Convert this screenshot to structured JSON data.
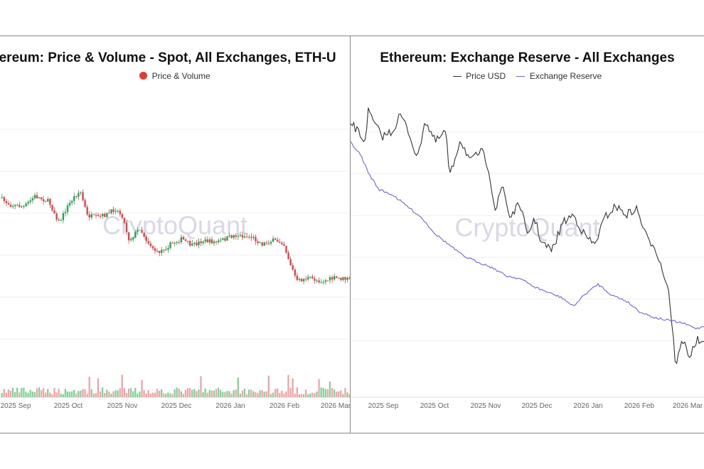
{
  "chart_data": [
    {
      "type": "candlestick",
      "title": "Ethereum: Price & Volume - Spot, All Exchanges, ETH-U",
      "legend": [
        {
          "name": "Price & Volume",
          "color": "#e53935"
        }
      ],
      "legend_position": "top-center",
      "watermark": "CryptoQuant",
      "grid": true,
      "x_ticks": [
        "2025 Sep",
        "2025 Oct",
        "2025 Nov",
        "2025 Dec",
        "2026 Jan",
        "2026 Feb",
        "2026 Mar"
      ],
      "price_path": [
        [
          0,
          0.31
        ],
        [
          0.03,
          0.35
        ],
        [
          0.07,
          0.36
        ],
        [
          0.1,
          0.3
        ],
        [
          0.14,
          0.33
        ],
        [
          0.17,
          0.45
        ],
        [
          0.19,
          0.37
        ],
        [
          0.21,
          0.31
        ],
        [
          0.23,
          0.27
        ],
        [
          0.25,
          0.41
        ],
        [
          0.28,
          0.42
        ],
        [
          0.31,
          0.4
        ],
        [
          0.33,
          0.37
        ],
        [
          0.35,
          0.41
        ],
        [
          0.37,
          0.55
        ],
        [
          0.4,
          0.48
        ],
        [
          0.42,
          0.55
        ],
        [
          0.45,
          0.62
        ],
        [
          0.49,
          0.57
        ],
        [
          0.52,
          0.54
        ],
        [
          0.55,
          0.58
        ],
        [
          0.58,
          0.55
        ],
        [
          0.62,
          0.56
        ],
        [
          0.67,
          0.52
        ],
        [
          0.72,
          0.53
        ],
        [
          0.75,
          0.57
        ],
        [
          0.78,
          0.55
        ],
        [
          0.81,
          0.56
        ],
        [
          0.83,
          0.68
        ],
        [
          0.85,
          0.78
        ],
        [
          0.88,
          0.76
        ],
        [
          0.92,
          0.78
        ],
        [
          0.96,
          0.76
        ],
        [
          1.0,
          0.77
        ]
      ],
      "candle_colors": {
        "up": "#2e9e4f",
        "down": "#e0434a"
      }
    },
    {
      "type": "line",
      "title": "Ethereum: Exchange Reserve - All Exchanges",
      "series": [
        {
          "name": "Price USD",
          "color": "#333333",
          "points": [
            [
              0,
              0.06
            ],
            [
              0.02,
              0.09
            ],
            [
              0.04,
              0.13
            ],
            [
              0.05,
              0.02
            ],
            [
              0.07,
              0.07
            ],
            [
              0.09,
              0.11
            ],
            [
              0.12,
              0.09
            ],
            [
              0.14,
              0.03
            ],
            [
              0.16,
              0.08
            ],
            [
              0.19,
              0.19
            ],
            [
              0.21,
              0.05
            ],
            [
              0.24,
              0.13
            ],
            [
              0.27,
              0.09
            ],
            [
              0.28,
              0.26
            ],
            [
              0.31,
              0.12
            ],
            [
              0.34,
              0.2
            ],
            [
              0.37,
              0.16
            ],
            [
              0.39,
              0.22
            ],
            [
              0.41,
              0.38
            ],
            [
              0.43,
              0.28
            ],
            [
              0.45,
              0.4
            ],
            [
              0.48,
              0.35
            ],
            [
              0.5,
              0.47
            ],
            [
              0.52,
              0.4
            ],
            [
              0.54,
              0.49
            ],
            [
              0.57,
              0.52
            ],
            [
              0.6,
              0.42
            ],
            [
              0.63,
              0.39
            ],
            [
              0.66,
              0.46
            ],
            [
              0.69,
              0.5
            ],
            [
              0.72,
              0.4
            ],
            [
              0.75,
              0.36
            ],
            [
              0.78,
              0.39
            ],
            [
              0.81,
              0.37
            ],
            [
              0.84,
              0.48
            ],
            [
              0.86,
              0.5
            ],
            [
              0.88,
              0.58
            ],
            [
              0.9,
              0.66
            ],
            [
              0.92,
              0.93
            ],
            [
              0.94,
              0.84
            ],
            [
              0.96,
              0.9
            ],
            [
              0.98,
              0.84
            ],
            [
              1.0,
              0.86
            ]
          ]
        },
        {
          "name": "Exchange Reserve",
          "color": "#6b67d6",
          "points": [
            [
              0,
              0.13
            ],
            [
              0.03,
              0.18
            ],
            [
              0.05,
              0.24
            ],
            [
              0.08,
              0.3
            ],
            [
              0.12,
              0.32
            ],
            [
              0.16,
              0.36
            ],
            [
              0.2,
              0.4
            ],
            [
              0.24,
              0.46
            ],
            [
              0.28,
              0.5
            ],
            [
              0.32,
              0.54
            ],
            [
              0.36,
              0.56
            ],
            [
              0.4,
              0.58
            ],
            [
              0.44,
              0.61
            ],
            [
              0.48,
              0.62
            ],
            [
              0.52,
              0.65
            ],
            [
              0.56,
              0.67
            ],
            [
              0.6,
              0.69
            ],
            [
              0.63,
              0.72
            ],
            [
              0.66,
              0.68
            ],
            [
              0.7,
              0.64
            ],
            [
              0.74,
              0.68
            ],
            [
              0.78,
              0.7
            ],
            [
              0.82,
              0.74
            ],
            [
              0.86,
              0.76
            ],
            [
              0.9,
              0.77
            ],
            [
              0.94,
              0.78
            ],
            [
              0.98,
              0.8
            ],
            [
              1.0,
              0.79
            ]
          ]
        }
      ],
      "legend_position": "top-center",
      "watermark": "CryptoQuant",
      "grid": true,
      "x_ticks": [
        "2025 Sep",
        "2025 Oct",
        "2025 Nov",
        "2025 Dec",
        "2026 Jan",
        "2026 Feb",
        "2026 Mar"
      ]
    }
  ]
}
